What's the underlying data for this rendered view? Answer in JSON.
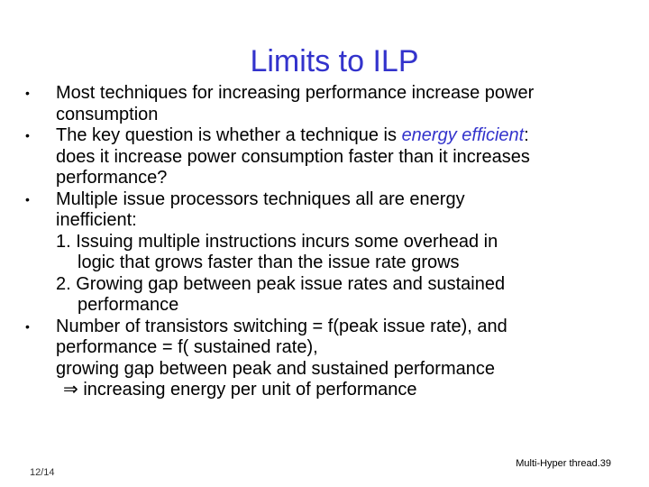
{
  "title": "Limits to ILP",
  "bullets": [
    {
      "lines": [
        "Most techniques for increasing performance increase power",
        "consumption"
      ]
    },
    {
      "line1_pre": "The key question is whether a technique is ",
      "line1_highlight": "energy efficient",
      "line1_post": ":",
      "lines": [
        "does it increase power consumption faster than it increases",
        "performance?"
      ]
    },
    {
      "lines": [
        "Multiple issue processors techniques all are energy",
        "inefficient:"
      ],
      "sub_items": [
        {
          "first": "1. Issuing multiple instructions incurs some overhead in",
          "cont": "logic that grows faster than the issue rate grows"
        },
        {
          "first": "2. Growing gap between peak issue rates and sustained",
          "cont": "performance"
        }
      ]
    },
    {
      "lines": [
        "Number of transistors switching = f(peak issue rate), and",
        "performance = f( sustained rate),",
        "growing gap between peak and sustained performance"
      ],
      "implies_symbol": "⇒",
      "implies_text": " increasing energy per unit of performance"
    }
  ],
  "bullet_symbol": "•",
  "footer": {
    "date": "12/14",
    "slide_label": "Multi-Hyper thread.39"
  }
}
